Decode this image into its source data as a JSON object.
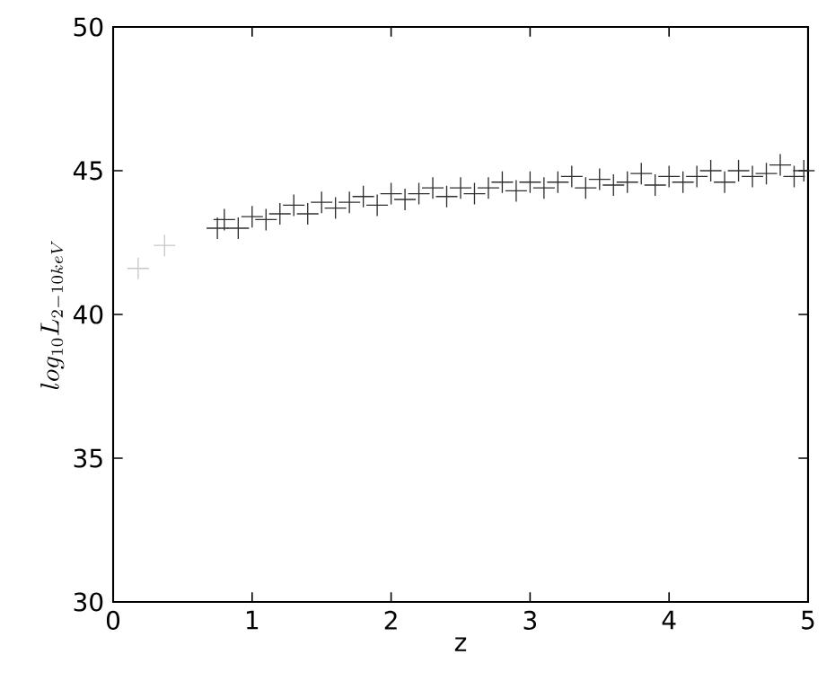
{
  "chart_data": {
    "type": "scatter",
    "xlabel": "z",
    "ylabel": "log_{10}L_{2-10keV}",
    "marker": "cross",
    "grid": false,
    "xlim": [
      0,
      5
    ],
    "ylim": [
      30,
      50
    ],
    "xticks": [
      0,
      1,
      2,
      3,
      4,
      5
    ],
    "yticks": [
      30,
      35,
      40,
      45,
      50
    ],
    "series": [
      {
        "color": "#c8c8c8",
        "x": [
          0.18,
          0.37
        ],
        "values": [
          41.6,
          42.4
        ]
      },
      {
        "color": "#303030",
        "x": [
          0.75,
          0.8,
          0.9,
          1.0,
          1.1,
          1.2,
          1.3,
          1.4,
          1.5,
          1.6,
          1.7,
          1.8,
          1.9,
          2.0,
          2.1,
          2.2,
          2.3,
          2.4,
          2.5,
          2.6,
          2.7,
          2.8,
          2.9,
          3.0,
          3.1,
          3.2,
          3.3,
          3.4,
          3.5,
          3.6,
          3.7,
          3.8,
          3.9,
          4.0,
          4.1,
          4.2,
          4.3,
          4.4,
          4.5,
          4.6,
          4.7,
          4.8,
          4.9,
          4.97
        ],
        "values": [
          43.0,
          43.3,
          43.0,
          43.4,
          43.3,
          43.5,
          43.8,
          43.5,
          43.9,
          43.7,
          43.9,
          44.1,
          43.8,
          44.2,
          44.0,
          44.2,
          44.4,
          44.1,
          44.4,
          44.2,
          44.4,
          44.6,
          44.3,
          44.6,
          44.4,
          44.6,
          44.8,
          44.4,
          44.7,
          44.5,
          44.6,
          44.9,
          44.5,
          44.8,
          44.6,
          44.8,
          45.0,
          44.6,
          45.0,
          44.8,
          44.9,
          45.2,
          44.8,
          45.0
        ]
      }
    ]
  }
}
